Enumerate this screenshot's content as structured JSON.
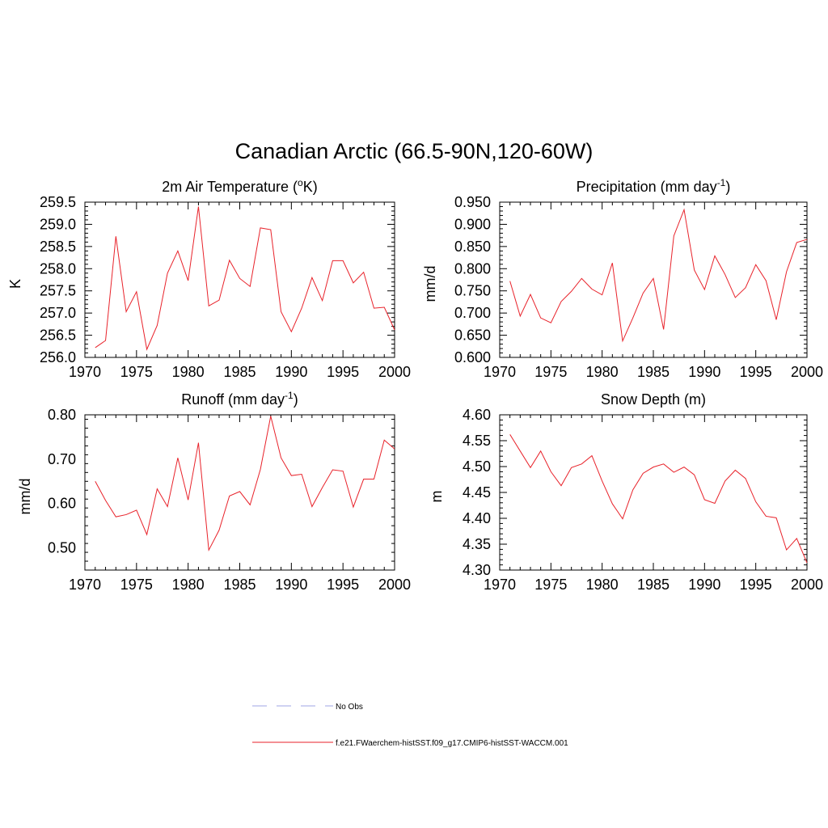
{
  "title": "Canadian Arctic (66.5-90N,120-60W)",
  "colors": {
    "model_series": "#e8222a",
    "obs_series": "#9fa6e6"
  },
  "legend": {
    "obs_label": "No Obs",
    "model_label": "f.e21.FWaerchem-histSST.f09_g17.CMIP6-histSST-WACCM.001"
  },
  "chart_data": [
    {
      "type": "line",
      "title_prefix": "2m Air Temperature (",
      "title_sup": "o",
      "title_suffix": "K)",
      "ylabel": "K",
      "xlim": [
        1970,
        2000
      ],
      "ylim": [
        256.0,
        259.5
      ],
      "xticks": [
        "1970",
        "1975",
        "1980",
        "1985",
        "1990",
        "1995",
        "2000"
      ],
      "yticks": [
        "256.0",
        "256.5",
        "257.0",
        "257.5",
        "258.0",
        "258.5",
        "259.0",
        "259.5"
      ],
      "x": [
        1971,
        1972,
        1973,
        1974,
        1975,
        1976,
        1977,
        1978,
        1979,
        1980,
        1981,
        1982,
        1983,
        1984,
        1985,
        1986,
        1987,
        1988,
        1989,
        1990,
        1991,
        1992,
        1993,
        1994,
        1995,
        1996,
        1997,
        1998,
        1999,
        2000
      ],
      "series": [
        {
          "values": [
            256.22,
            256.38,
            258.73,
            257.03,
            257.48,
            256.18,
            256.72,
            257.9,
            258.4,
            257.73,
            259.4,
            257.16,
            257.29,
            258.19,
            257.78,
            257.6,
            258.92,
            258.88,
            257.03,
            256.58,
            257.11,
            257.8,
            257.28,
            258.18,
            258.18,
            257.68,
            257.92,
            257.11,
            257.13,
            256.62
          ]
        }
      ]
    },
    {
      "type": "line",
      "title_prefix": "Precipitation (mm day",
      "title_sup": "-1",
      "title_suffix": ")",
      "ylabel": "mm/d",
      "xlim": [
        1970,
        2000
      ],
      "ylim": [
        0.6,
        0.95
      ],
      "xticks": [
        "1970",
        "1975",
        "1980",
        "1985",
        "1990",
        "1995",
        "2000"
      ],
      "yticks": [
        "0.600",
        "0.650",
        "0.700",
        "0.750",
        "0.800",
        "0.850",
        "0.900",
        "0.950"
      ],
      "x": [
        1971,
        1972,
        1973,
        1974,
        1975,
        1976,
        1977,
        1978,
        1979,
        1980,
        1981,
        1982,
        1983,
        1984,
        1985,
        1986,
        1987,
        1988,
        1989,
        1990,
        1991,
        1992,
        1993,
        1994,
        1995,
        1996,
        1997,
        1998,
        1999,
        2000
      ],
      "series": [
        {
          "values": [
            0.772,
            0.693,
            0.742,
            0.689,
            0.678,
            0.726,
            0.749,
            0.778,
            0.754,
            0.741,
            0.813,
            0.637,
            0.689,
            0.745,
            0.778,
            0.663,
            0.874,
            0.933,
            0.797,
            0.753,
            0.829,
            0.787,
            0.735,
            0.757,
            0.809,
            0.773,
            0.685,
            0.793,
            0.859,
            0.866
          ]
        }
      ]
    },
    {
      "type": "line",
      "title_prefix": "Runoff (mm day",
      "title_sup": "-1",
      "title_suffix": ")",
      "ylabel": "mm/d",
      "xlim": [
        1970,
        2000
      ],
      "ylim": [
        0.45,
        0.8
      ],
      "xticks": [
        "1970",
        "1975",
        "1980",
        "1985",
        "1990",
        "1995",
        "2000"
      ],
      "yticks": [
        "0.50",
        "0.60",
        "0.70",
        "0.80"
      ],
      "ytick_values": [
        0.5,
        0.6,
        0.7,
        0.8
      ],
      "x": [
        1971,
        1972,
        1973,
        1974,
        1975,
        1976,
        1977,
        1978,
        1979,
        1980,
        1981,
        1982,
        1983,
        1984,
        1985,
        1986,
        1987,
        1988,
        1989,
        1990,
        1991,
        1992,
        1993,
        1994,
        1995,
        1996,
        1997,
        1998,
        1999,
        2000
      ],
      "series": [
        {
          "values": [
            0.65,
            0.607,
            0.57,
            0.575,
            0.585,
            0.53,
            0.633,
            0.593,
            0.703,
            0.608,
            0.737,
            0.495,
            0.54,
            0.617,
            0.627,
            0.597,
            0.677,
            0.797,
            0.703,
            0.663,
            0.666,
            0.593,
            0.636,
            0.676,
            0.673,
            0.592,
            0.655,
            0.655,
            0.743,
            0.723
          ]
        }
      ]
    },
    {
      "type": "line",
      "title_prefix": "Snow Depth (m)",
      "title_sup": "",
      "title_suffix": "",
      "ylabel": "m",
      "xlim": [
        1970,
        2000
      ],
      "ylim": [
        4.3,
        4.6
      ],
      "xticks": [
        "1970",
        "1975",
        "1980",
        "1985",
        "1990",
        "1995",
        "2000"
      ],
      "yticks": [
        "4.30",
        "4.35",
        "4.40",
        "4.45",
        "4.50",
        "4.55",
        "4.60"
      ],
      "x": [
        1971,
        1972,
        1973,
        1974,
        1975,
        1976,
        1977,
        1978,
        1979,
        1980,
        1981,
        1982,
        1983,
        1984,
        1985,
        1986,
        1987,
        1988,
        1989,
        1990,
        1991,
        1992,
        1993,
        1994,
        1995,
        1996,
        1997,
        1998,
        1999,
        2000
      ],
      "series": [
        {
          "values": [
            4.562,
            4.53,
            4.498,
            4.53,
            4.49,
            4.463,
            4.498,
            4.505,
            4.521,
            4.472,
            4.428,
            4.399,
            4.455,
            4.487,
            4.499,
            4.505,
            4.489,
            4.499,
            4.484,
            4.436,
            4.429,
            4.472,
            4.493,
            4.477,
            4.432,
            4.404,
            4.401,
            4.339,
            4.361,
            4.314
          ]
        }
      ]
    }
  ]
}
